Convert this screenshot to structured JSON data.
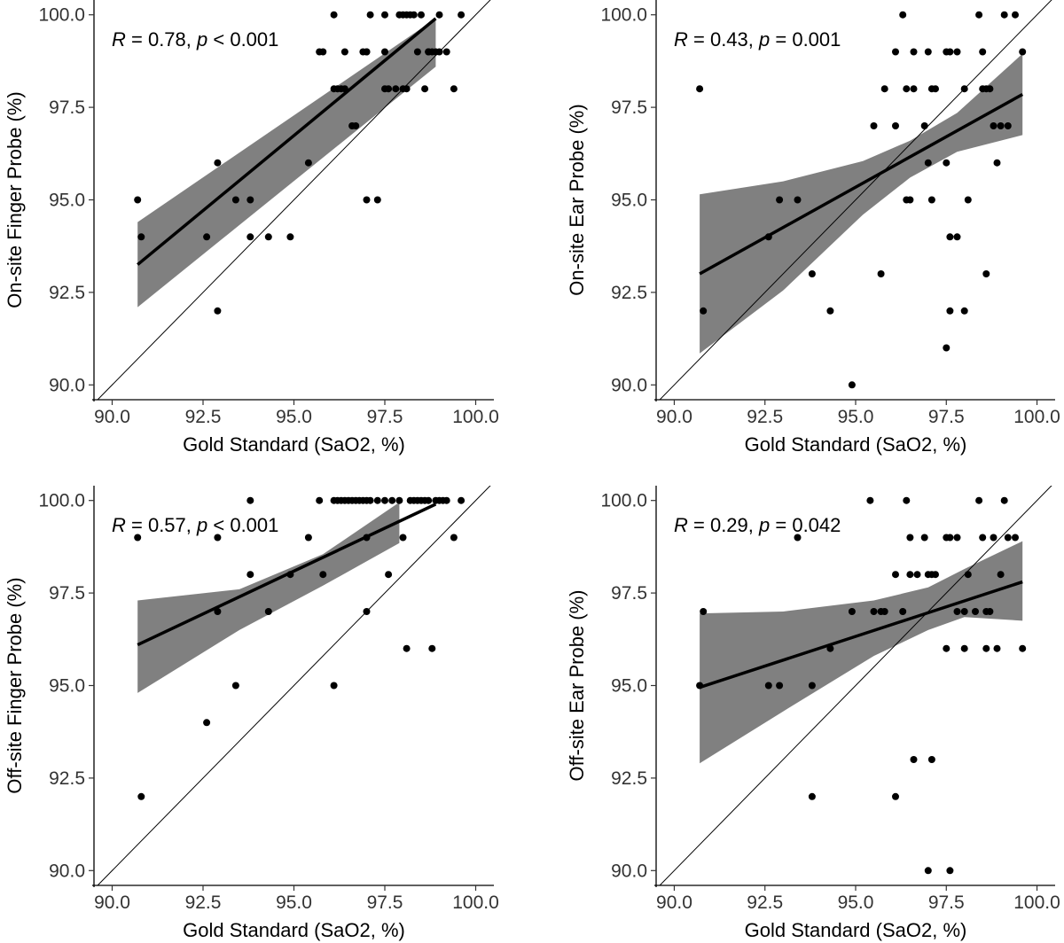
{
  "chart_data": [
    {
      "type": "scatter",
      "xlabel": "Gold Standard (SaO2, %)",
      "ylabel": "On-site Finger Probe (%)",
      "xlim": [
        89.5,
        100.5
      ],
      "ylim": [
        89.6,
        100.4
      ],
      "xticks": [
        90.0,
        92.5,
        95.0,
        97.5,
        100.0
      ],
      "xtick_labels": [
        "90.0",
        "92.5",
        "95.0",
        "97.5",
        "100.0"
      ],
      "yticks": [
        90.0,
        92.5,
        95.0,
        97.5,
        100.0
      ],
      "ytick_labels": [
        "90.0",
        "92.5",
        "95.0",
        "97.5",
        "100.0"
      ],
      "stat": {
        "r_symbol": "R",
        "r_text": " = 0.78, ",
        "p_symbol": "p",
        "p_text": " < 0.001"
      },
      "identity_line": true,
      "fit": {
        "x": [
          90.7,
          98.9
        ],
        "y": [
          93.25,
          99.9
        ]
      },
      "ci_band": {
        "x": [
          90.7,
          98.9
        ],
        "upper": [
          94.4,
          99.9
        ],
        "lower": [
          92.1,
          98.6
        ]
      },
      "points": {
        "x": [
          90.7,
          90.8,
          92.6,
          92.9,
          92.9,
          93.4,
          93.8,
          93.8,
          94.3,
          94.9,
          95.4,
          95.7,
          95.8,
          96.1,
          96.1,
          96.2,
          96.3,
          96.4,
          96.4,
          96.6,
          96.7,
          96.9,
          97.0,
          97.0,
          97.0,
          97.1,
          97.3,
          97.5,
          97.5,
          97.5,
          97.6,
          97.8,
          97.9,
          98.0,
          98.0,
          98.1,
          98.1,
          98.2,
          98.3,
          98.4,
          98.5,
          98.6,
          98.7,
          98.7,
          98.8,
          98.9,
          99.0,
          99.0,
          99.2,
          99.4,
          99.6
        ],
        "y": [
          95,
          94,
          94,
          96,
          92,
          95,
          95,
          94,
          94,
          94,
          96,
          99,
          99,
          100,
          98,
          98,
          98,
          98,
          99,
          97,
          97,
          99,
          99,
          95,
          99,
          100,
          95,
          100,
          99,
          98,
          98,
          98,
          100,
          100,
          98,
          100,
          98,
          100,
          100,
          99,
          100,
          98,
          99,
          99,
          99,
          99,
          100,
          99,
          99,
          98,
          100
        ]
      }
    },
    {
      "type": "scatter",
      "xlabel": "Gold Standard (SaO2, %)",
      "ylabel": "On-site Ear Probe (%)",
      "xlim": [
        89.5,
        100.5
      ],
      "ylim": [
        89.6,
        100.4
      ],
      "xticks": [
        90.0,
        92.5,
        95.0,
        97.5,
        100.0
      ],
      "xtick_labels": [
        "90.0",
        "92.5",
        "95.0",
        "97.5",
        "100.0"
      ],
      "yticks": [
        90.0,
        92.5,
        95.0,
        97.5,
        100.0
      ],
      "ytick_labels": [
        "90.0",
        "92.5",
        "95.0",
        "97.5",
        "100.0"
      ],
      "stat": {
        "r_symbol": "R",
        "r_text": " = 0.43, ",
        "p_symbol": "p",
        "p_text": " = 0.001"
      },
      "identity_line": true,
      "fit": {
        "x": [
          90.7,
          99.6
        ],
        "y": [
          93.0,
          97.85
        ]
      },
      "ci_band": {
        "x": [
          90.7,
          93.0,
          95.2,
          96.5,
          97.8,
          99.6
        ],
        "upper": [
          95.15,
          95.5,
          96.05,
          96.6,
          97.35,
          98.95
        ],
        "lower": [
          90.85,
          92.55,
          94.6,
          95.6,
          96.3,
          96.75
        ]
      },
      "points": {
        "x": [
          90.7,
          90.8,
          92.6,
          92.9,
          93.4,
          93.8,
          94.3,
          94.9,
          95.5,
          95.7,
          95.8,
          96.1,
          96.1,
          96.3,
          96.4,
          96.4,
          96.5,
          96.6,
          96.6,
          96.9,
          97.0,
          97.0,
          97.1,
          97.1,
          97.2,
          97.5,
          97.5,
          97.5,
          97.6,
          97.6,
          97.6,
          97.8,
          97.8,
          98.0,
          98.0,
          98.1,
          98.4,
          98.5,
          98.5,
          98.6,
          98.6,
          98.7,
          98.8,
          98.9,
          99.0,
          99.1,
          99.2,
          99.4,
          99.6
        ],
        "y": [
          98,
          92,
          94,
          95,
          95,
          93,
          92,
          90,
          97,
          93,
          98,
          99,
          97,
          100,
          98,
          95,
          95,
          98,
          99,
          97,
          99,
          96,
          95,
          98,
          98,
          99,
          96,
          91,
          94,
          92,
          99,
          99,
          94,
          92,
          98,
          95,
          100,
          98,
          99,
          98,
          93,
          98,
          97,
          96,
          97,
          100,
          97,
          100,
          99
        ]
      }
    },
    {
      "type": "scatter",
      "xlabel": "Gold Standard (SaO2, %)",
      "ylabel": "Off-site Finger Probe (%)",
      "xlim": [
        89.5,
        100.5
      ],
      "ylim": [
        89.6,
        100.4
      ],
      "xticks": [
        90.0,
        92.5,
        95.0,
        97.5,
        100.0
      ],
      "xtick_labels": [
        "90.0",
        "92.5",
        "95.0",
        "97.5",
        "100.0"
      ],
      "yticks": [
        90.0,
        92.5,
        95.0,
        97.5,
        100.0
      ],
      "ytick_labels": [
        "90.0",
        "92.5",
        "95.0",
        "97.5",
        "100.0"
      ],
      "stat": {
        "r_symbol": "R",
        "r_text": " = 0.57, ",
        "p_symbol": "p",
        "p_text": " < 0.001"
      },
      "identity_line": true,
      "fit": {
        "x": [
          90.7,
          98.9
        ],
        "y": [
          96.1,
          99.9
        ]
      },
      "ci_band": {
        "x": [
          90.7,
          93.5,
          95.8,
          97.9
        ],
        "upper": [
          97.3,
          97.6,
          98.55,
          99.95
        ],
        "lower": [
          94.8,
          96.5,
          97.7,
          98.85
        ]
      },
      "points": {
        "x": [
          90.7,
          90.8,
          92.6,
          92.9,
          92.9,
          93.4,
          93.8,
          93.8,
          94.3,
          94.9,
          95.4,
          95.7,
          95.8,
          96.1,
          96.1,
          96.2,
          96.3,
          96.4,
          96.5,
          96.6,
          96.7,
          96.8,
          96.9,
          97.0,
          97.0,
          97.0,
          97.1,
          97.3,
          97.5,
          97.6,
          97.7,
          97.9,
          98.0,
          98.1,
          98.2,
          98.3,
          98.4,
          98.5,
          98.6,
          98.7,
          98.8,
          98.9,
          99.0,
          99.1,
          99.2,
          99.4,
          99.6
        ],
        "y": [
          99,
          92,
          94,
          99,
          97,
          95,
          100,
          98,
          97,
          98,
          99,
          100,
          98,
          100,
          95,
          100,
          100,
          100,
          100,
          100,
          100,
          100,
          100,
          97,
          99,
          100,
          100,
          100,
          100,
          98,
          100,
          100,
          99,
          96,
          100,
          100,
          100,
          100,
          100,
          100,
          96,
          100,
          100,
          100,
          100,
          99,
          100
        ]
      }
    },
    {
      "type": "scatter",
      "xlabel": "Gold Standard (SaO2, %)",
      "ylabel": "Off-site Ear Probe (%)",
      "xlim": [
        89.5,
        100.5
      ],
      "ylim": [
        89.6,
        100.4
      ],
      "xticks": [
        90.0,
        92.5,
        95.0,
        97.5,
        100.0
      ],
      "xtick_labels": [
        "90.0",
        "92.5",
        "95.0",
        "97.5",
        "100.0"
      ],
      "yticks": [
        90.0,
        92.5,
        95.0,
        97.5,
        100.0
      ],
      "ytick_labels": [
        "90.0",
        "92.5",
        "95.0",
        "97.5",
        "100.0"
      ],
      "stat": {
        "r_symbol": "R",
        "r_text": " = 0.29, ",
        "p_symbol": "p",
        "p_text": " = 0.042"
      },
      "identity_line": true,
      "fit": {
        "x": [
          90.7,
          99.6
        ],
        "y": [
          94.95,
          97.8
        ]
      },
      "ci_band": {
        "x": [
          90.7,
          93.0,
          95.5,
          97.0,
          98.0,
          99.6
        ],
        "upper": [
          96.95,
          97.0,
          97.3,
          97.65,
          98.15,
          98.9
        ],
        "lower": [
          92.9,
          94.3,
          95.8,
          96.5,
          96.85,
          96.75
        ]
      },
      "points": {
        "x": [
          90.7,
          90.8,
          92.6,
          92.9,
          93.4,
          93.8,
          93.8,
          94.3,
          94.9,
          95.4,
          95.5,
          95.7,
          95.8,
          96.1,
          96.1,
          96.3,
          96.4,
          96.5,
          96.5,
          96.6,
          96.7,
          96.9,
          97.0,
          97.0,
          97.1,
          97.1,
          97.2,
          97.5,
          97.5,
          97.6,
          97.6,
          97.8,
          97.8,
          98.0,
          98.0,
          98.1,
          98.3,
          98.4,
          98.5,
          98.6,
          98.6,
          98.7,
          98.8,
          98.9,
          99.0,
          99.1,
          99.2,
          99.4,
          99.6
        ],
        "y": [
          95,
          97,
          95,
          95,
          99,
          95,
          92,
          96,
          97,
          100,
          97,
          97,
          97,
          98,
          92,
          97,
          100,
          99,
          98,
          93,
          98,
          99,
          98,
          90,
          93,
          98,
          98,
          99,
          96,
          99,
          90,
          99,
          97,
          97,
          96,
          98,
          97,
          100,
          99,
          96,
          97,
          97,
          99,
          96,
          98,
          100,
          99,
          99,
          96
        ]
      }
    }
  ]
}
